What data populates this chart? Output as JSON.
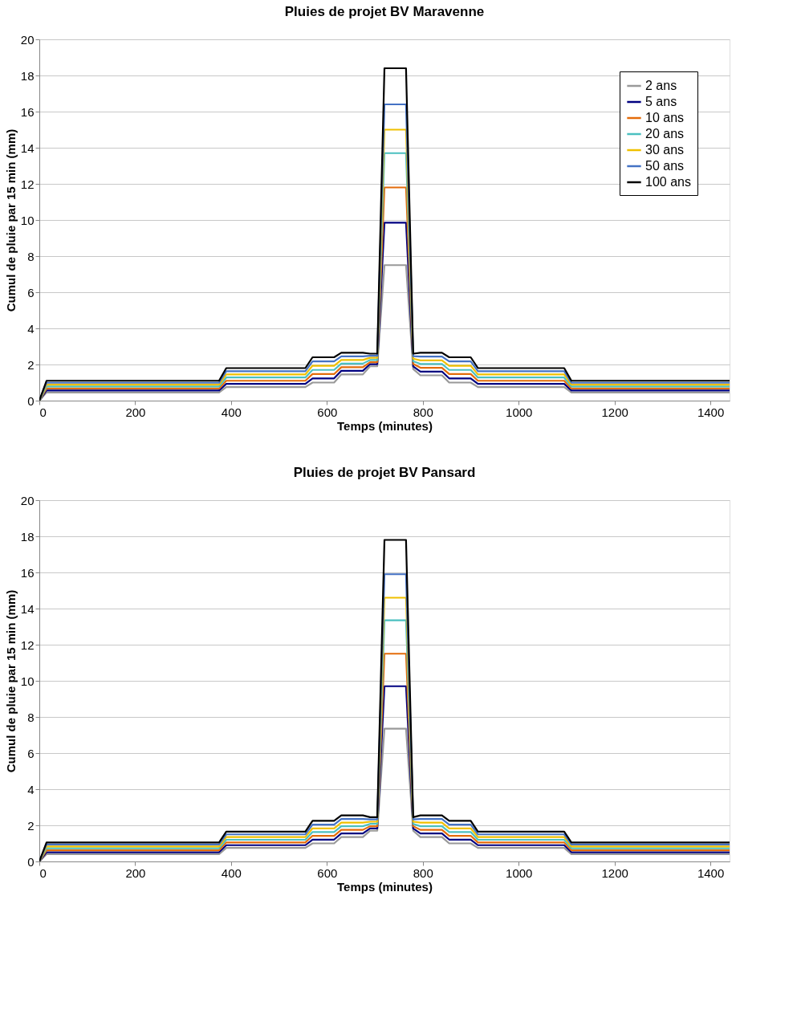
{
  "chart_data": [
    {
      "type": "line",
      "title": "Pluies de projet BV Maravenne",
      "xlabel": "Temps (minutes)",
      "ylabel": "Cumul de pluie par 15 min (mm)",
      "x": [
        0,
        15,
        375,
        390,
        555,
        570,
        615,
        630,
        675,
        690,
        705,
        720,
        765,
        780,
        795,
        840,
        855,
        900,
        915,
        1095,
        1110,
        1440
      ],
      "xlim": [
        0,
        1440
      ],
      "xticks": [
        0,
        200,
        400,
        600,
        800,
        1000,
        1200,
        1400
      ],
      "ylim": [
        0,
        20
      ],
      "yticks": [
        0,
        2,
        4,
        6,
        8,
        10,
        12,
        14,
        16,
        18,
        20
      ],
      "grid": "y",
      "legend": "top right",
      "marker": "none",
      "line_style": "solid",
      "series": [
        {
          "name": "2 ans",
          "color": "#999999",
          "values": [
            0,
            0.45,
            0.45,
            0.75,
            0.75,
            1.0,
            1.0,
            1.45,
            1.45,
            1.9,
            1.9,
            7.5,
            7.5,
            1.75,
            1.4,
            1.4,
            1.0,
            1.0,
            0.75,
            0.75,
            0.45,
            0.45
          ]
        },
        {
          "name": "5 ans",
          "color": "#000080",
          "values": [
            0,
            0.56,
            0.56,
            0.93,
            0.93,
            1.23,
            1.23,
            1.65,
            1.65,
            2.02,
            2.02,
            9.85,
            9.85,
            1.89,
            1.61,
            1.61,
            1.23,
            1.23,
            0.93,
            0.93,
            0.56,
            0.56
          ]
        },
        {
          "name": "10 ans",
          "color": "#e46c0a",
          "values": [
            0,
            0.67,
            0.67,
            1.1,
            1.1,
            1.47,
            1.47,
            1.85,
            1.85,
            2.13,
            2.13,
            11.8,
            11.8,
            2.03,
            1.82,
            1.82,
            1.47,
            1.47,
            1.1,
            1.1,
            0.67,
            0.67
          ]
        },
        {
          "name": "20 ans",
          "color": "#4bc0c0",
          "values": [
            0,
            0.78,
            0.78,
            1.28,
            1.28,
            1.7,
            1.7,
            2.05,
            2.05,
            2.25,
            2.25,
            13.7,
            13.7,
            2.18,
            2.03,
            2.03,
            1.7,
            1.7,
            1.28,
            1.28,
            0.78,
            0.78
          ]
        },
        {
          "name": "30 ans",
          "color": "#f0c000",
          "values": [
            0,
            0.88,
            0.88,
            1.45,
            1.45,
            1.93,
            1.93,
            2.25,
            2.25,
            2.37,
            2.37,
            15.0,
            15.0,
            2.32,
            2.23,
            2.23,
            1.93,
            1.93,
            1.45,
            1.45,
            0.88,
            0.88
          ]
        },
        {
          "name": "50 ans",
          "color": "#4472c4",
          "values": [
            0,
            0.99,
            0.99,
            1.63,
            1.63,
            2.17,
            2.17,
            2.45,
            2.45,
            2.48,
            2.48,
            16.4,
            16.4,
            2.46,
            2.44,
            2.44,
            2.17,
            2.17,
            1.63,
            1.63,
            0.99,
            0.99
          ]
        },
        {
          "name": "100 ans",
          "color": "#000000",
          "values": [
            0,
            1.1,
            1.1,
            1.8,
            1.8,
            2.4,
            2.4,
            2.65,
            2.65,
            2.6,
            2.6,
            18.4,
            18.4,
            2.6,
            2.65,
            2.65,
            2.4,
            2.4,
            1.8,
            1.8,
            1.1,
            1.1
          ]
        }
      ]
    },
    {
      "type": "line",
      "title": "Pluies de projet BV Pansard",
      "xlabel": "Temps (minutes)",
      "ylabel": "Cumul de pluie par 15 min (mm)",
      "x": [
        0,
        15,
        375,
        390,
        555,
        570,
        615,
        630,
        675,
        690,
        705,
        720,
        765,
        780,
        795,
        840,
        855,
        900,
        915,
        1095,
        1110,
        1440
      ],
      "xlim": [
        0,
        1440
      ],
      "xticks": [
        0,
        200,
        400,
        600,
        800,
        1000,
        1200,
        1400
      ],
      "ylim": [
        0,
        20
      ],
      "yticks": [
        0,
        2,
        4,
        6,
        8,
        10,
        12,
        14,
        16,
        18,
        20
      ],
      "grid": "y",
      "legend": "top right",
      "marker": "none",
      "line_style": "solid",
      "series": [
        {
          "name": "2 ans",
          "color": "#999999",
          "values": [
            0,
            0.4,
            0.4,
            0.75,
            0.75,
            1.0,
            1.0,
            1.35,
            1.35,
            1.7,
            1.7,
            7.35,
            7.35,
            1.7,
            1.35,
            1.35,
            1.0,
            1.0,
            0.75,
            0.75,
            0.4,
            0.4
          ]
        },
        {
          "name": "5 ans",
          "color": "#000080",
          "values": [
            0,
            0.51,
            0.51,
            0.9,
            0.9,
            1.21,
            1.21,
            1.55,
            1.55,
            1.83,
            1.83,
            9.7,
            9.7,
            1.83,
            1.55,
            1.55,
            1.21,
            1.21,
            0.9,
            0.9,
            0.51,
            0.51
          ]
        },
        {
          "name": "10 ans",
          "color": "#e46c0a",
          "values": [
            0,
            0.62,
            0.62,
            1.05,
            1.05,
            1.42,
            1.42,
            1.75,
            1.75,
            1.95,
            1.95,
            11.5,
            11.5,
            1.95,
            1.75,
            1.75,
            1.42,
            1.42,
            1.05,
            1.05,
            0.62,
            0.62
          ]
        },
        {
          "name": "20 ans",
          "color": "#4bc0c0",
          "values": [
            0,
            0.73,
            0.73,
            1.2,
            1.2,
            1.63,
            1.63,
            1.95,
            1.95,
            2.08,
            2.08,
            13.35,
            13.35,
            2.08,
            1.95,
            1.95,
            1.63,
            1.63,
            1.2,
            1.2,
            0.73,
            0.73
          ]
        },
        {
          "name": "30 ans",
          "color": "#f0c000",
          "values": [
            0,
            0.83,
            0.83,
            1.35,
            1.35,
            1.83,
            1.83,
            2.15,
            2.15,
            2.2,
            2.2,
            14.6,
            14.6,
            2.2,
            2.15,
            2.15,
            1.83,
            1.83,
            1.35,
            1.35,
            0.83,
            0.83
          ]
        },
        {
          "name": "50 ans",
          "color": "#4472c4",
          "values": [
            0,
            0.94,
            0.94,
            1.5,
            1.5,
            2.04,
            2.04,
            2.35,
            2.35,
            2.33,
            2.33,
            15.9,
            15.9,
            2.33,
            2.35,
            2.35,
            2.04,
            2.04,
            1.5,
            1.5,
            0.94,
            0.94
          ]
        },
        {
          "name": "100 ans",
          "color": "#000000",
          "values": [
            0,
            1.05,
            1.05,
            1.65,
            1.65,
            2.25,
            2.25,
            2.55,
            2.55,
            2.45,
            2.45,
            17.8,
            17.8,
            2.45,
            2.55,
            2.55,
            2.25,
            2.25,
            1.65,
            1.65,
            1.05,
            1.05
          ]
        }
      ]
    }
  ]
}
